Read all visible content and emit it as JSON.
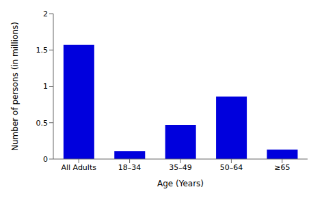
{
  "chart_data": {
    "type": "bar",
    "categories": [
      "All Adults",
      "18–34",
      "35–49",
      "50–64",
      "≥65"
    ],
    "values": [
      1.57,
      0.11,
      0.47,
      0.86,
      0.13
    ],
    "color": "#0000dd",
    "xlabel": "Age (Years)",
    "ylabel": "Number of persons (in millions)",
    "ylim": [
      0,
      2
    ],
    "yticks": [
      0,
      0.5,
      1,
      1.5,
      2
    ]
  }
}
